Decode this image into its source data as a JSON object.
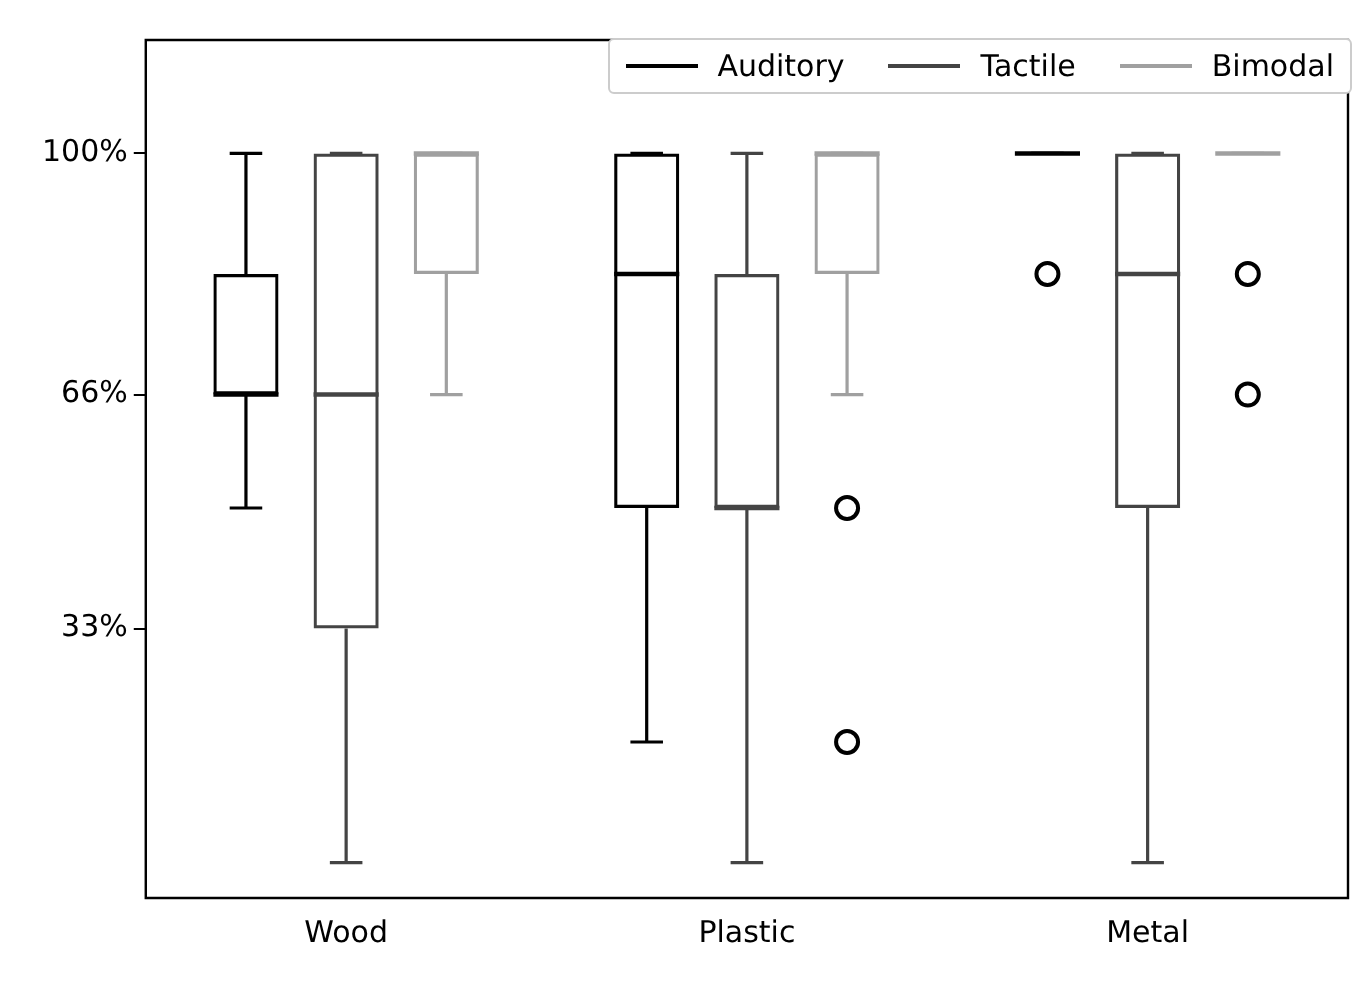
{
  "chart_data": {
    "type": "box",
    "categories": [
      "Wood",
      "Plastic",
      "Metal"
    ],
    "series": [
      {
        "name": "Auditory",
        "color": "#000000",
        "boxes": [
          {
            "low": 50,
            "q1": 66,
            "median": 66,
            "q3": 83,
            "high": 100
          },
          {
            "low": 17,
            "q1": 50,
            "median": 83,
            "q3": 100,
            "high": 100
          },
          {
            "low": 100,
            "q1": 100,
            "median": 100,
            "q3": 100,
            "high": 100,
            "outliers": [
              83
            ]
          }
        ]
      },
      {
        "name": "Tactile",
        "color": "#444444",
        "boxes": [
          {
            "low": 0,
            "q1": 33,
            "median": 66,
            "q3": 100,
            "high": 100
          },
          {
            "low": 0,
            "q1": 50,
            "median": 50,
            "q3": 83,
            "high": 100
          },
          {
            "low": 0,
            "q1": 50,
            "median": 83,
            "q3": 100,
            "high": 100
          }
        ]
      },
      {
        "name": "Bimodal",
        "color": "#a0a0a0",
        "boxes": [
          {
            "low": 66,
            "q1": 83,
            "median": 100,
            "q3": 100,
            "high": 100
          },
          {
            "low": 66,
            "q1": 83,
            "median": 100,
            "q3": 100,
            "high": 100,
            "outliers": [
              50,
              17
            ]
          },
          {
            "low": 100,
            "q1": 100,
            "median": 100,
            "q3": 100,
            "high": 100,
            "outliers": [
              83,
              66
            ]
          }
        ]
      }
    ],
    "ylim": [
      -5,
      116
    ],
    "yticks": [
      {
        "value": 33,
        "label": "33%"
      },
      {
        "value": 66,
        "label": "66%"
      },
      {
        "value": 100,
        "label": "100%"
      }
    ],
    "grid": false,
    "legend": "top right",
    "marker": "circle"
  }
}
